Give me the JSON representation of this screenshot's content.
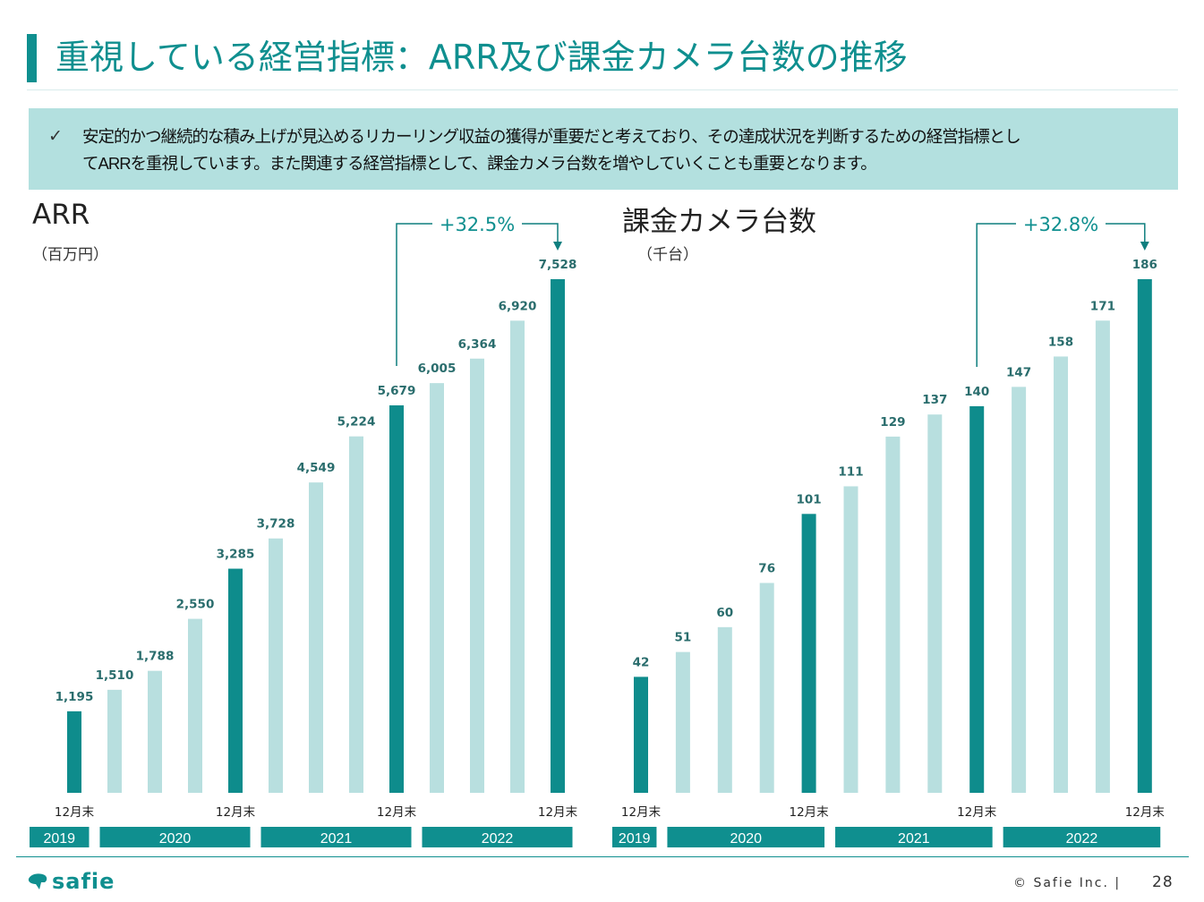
{
  "header": {
    "title": "重視している経営指標：ARR及び課金カメラ台数の推移"
  },
  "note": {
    "line1": "安定的かつ継続的な積み上げが見込めるリカーリング収益の獲得が重要だと考えており、その達成状況を判断するための経営指標とし",
    "line2": "てARRを重視しています。また関連する経営指標として、課金カメラ台数を増やしていくことも重要となります。"
  },
  "chart_data": [
    {
      "type": "bar",
      "title": "ARR",
      "unit": "（百万円）",
      "values": [
        1195,
        1510,
        1788,
        2550,
        3285,
        3728,
        4549,
        5224,
        5679,
        6005,
        6364,
        6920,
        7528
      ],
      "labels": [
        "1,195",
        "1,510",
        "1,788",
        "2,550",
        "3,285",
        "3,728",
        "4,549",
        "5,224",
        "5,679",
        "6,005",
        "6,364",
        "6,920",
        "7,528"
      ],
      "ylim": [
        0,
        8000
      ],
      "highlight_indices": [
        0,
        4,
        8,
        12
      ],
      "tick_label": "12月末",
      "year_groups": [
        {
          "label": "2019",
          "start": 0,
          "end": 0
        },
        {
          "label": "2020",
          "start": 1,
          "end": 4
        },
        {
          "label": "2021",
          "start": 5,
          "end": 8
        },
        {
          "label": "2022",
          "start": 9,
          "end": 12
        }
      ],
      "growth": {
        "label": "+32.5%",
        "from_index": 8,
        "to_index": 12
      },
      "grid": false
    },
    {
      "type": "bar",
      "title": "課金カメラ台数",
      "unit": "（千台）",
      "values": [
        42,
        51,
        60,
        76,
        101,
        111,
        129,
        137,
        140,
        147,
        158,
        171,
        186
      ],
      "labels": [
        "42",
        "51",
        "60",
        "76",
        "101",
        "111",
        "129",
        "137",
        "140",
        "147",
        "158",
        "171",
        "186"
      ],
      "ylim": [
        0,
        200
      ],
      "highlight_indices": [
        0,
        4,
        8,
        12
      ],
      "tick_label": "12月末",
      "year_groups": [
        {
          "label": "2019",
          "start": 0,
          "end": 0
        },
        {
          "label": "2020",
          "start": 1,
          "end": 4
        },
        {
          "label": "2021",
          "start": 5,
          "end": 8
        },
        {
          "label": "2022",
          "start": 9,
          "end": 12
        }
      ],
      "growth": {
        "label": "+32.8%",
        "from_index": 8,
        "to_index": 12
      },
      "grid": false
    }
  ],
  "colors": {
    "accent": "#0f8f8f",
    "bar_dark": "#0e8c8c",
    "bar_light": "#b8dfdf",
    "note_bg": "#b3e0df"
  },
  "footer": {
    "logo_text": "safie",
    "copyright": "© Safie Inc. |",
    "page": "28"
  }
}
